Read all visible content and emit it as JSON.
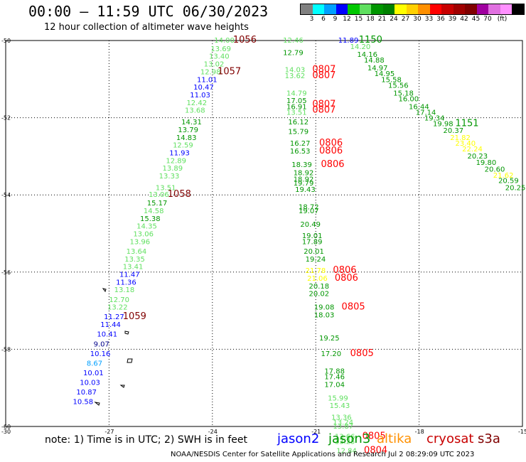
{
  "title": "00:00 – 11:59 UTC 06/30/2023",
  "subtitle": "12 hour collection of altimeter wave heights",
  "legend": {
    "colors": [
      "#808080",
      "#00ffff",
      "#00a0ff",
      "#0000ff",
      "#00c800",
      "#60e060",
      "#009600",
      "#008000",
      "#ffff00",
      "#ffd000",
      "#ff9000",
      "#ff0000",
      "#c80000",
      "#a00000",
      "#800000",
      "#a000a0",
      "#e070e0",
      "#ff90ff",
      "#000000"
    ],
    "labels": [
      "3",
      "6",
      "9",
      "12",
      "15",
      "18",
      "21",
      "24",
      "27",
      "30",
      "33",
      "36",
      "39",
      "42",
      "45",
      "70",
      "(ft)"
    ]
  },
  "axes": {
    "lat_labels": [
      "-50",
      "-52",
      "-54",
      "-56",
      "-58",
      "-60"
    ],
    "lon_labels": [
      "-30",
      "-27",
      "-24",
      "-21",
      "-18",
      "-15"
    ]
  },
  "note": "note: 1) Time is in UTC; 2) SWH is in feet",
  "satellites": [
    {
      "name": "jason2",
      "color": "#0000ff"
    },
    {
      "name": "jason3",
      "color": "#009600"
    },
    {
      "name": "altika",
      "color": "#ff9000"
    },
    {
      "name": "cryosat",
      "color": "#c80000"
    },
    {
      "name": "s3a",
      "color": "#800000"
    }
  ],
  "footer": "NOAA/NESDIS Center for Satellite Applications and Research    Jul  2 08:29:09 UTC 2023",
  "readings": [
    {
      "t": "14.00",
      "lon": -23.95,
      "lat": -49.98,
      "c": "#60e060"
    },
    {
      "t": "1056",
      "lon": -23.4,
      "lat": -49.98,
      "c": "#800000",
      "big": 1
    },
    {
      "t": "13.69",
      "lon": -24.05,
      "lat": -50.2,
      "c": "#60e060"
    },
    {
      "t": "13.40",
      "lon": -24.1,
      "lat": -50.4,
      "c": "#60e060"
    },
    {
      "t": "13.02",
      "lon": -24.25,
      "lat": -50.6,
      "c": "#60e060"
    },
    {
      "t": "12.98",
      "lon": -24.35,
      "lat": -50.8,
      "c": "#60e060"
    },
    {
      "t": "1057",
      "lon": -23.85,
      "lat": -50.8,
      "c": "#800000",
      "big": 1
    },
    {
      "t": "11.01",
      "lon": -24.45,
      "lat": -51.0,
      "c": "#0000ff"
    },
    {
      "t": "10.47",
      "lon": -24.55,
      "lat": -51.2,
      "c": "#0000ff"
    },
    {
      "t": "11.03",
      "lon": -24.65,
      "lat": -51.4,
      "c": "#0000ff"
    },
    {
      "t": "12.42",
      "lon": -24.75,
      "lat": -51.6,
      "c": "#60e060"
    },
    {
      "t": "13.68",
      "lon": -24.8,
      "lat": -51.8,
      "c": "#60e060"
    },
    {
      "t": "14.31",
      "lon": -24.9,
      "lat": -52.1,
      "c": "#009600"
    },
    {
      "t": "13.79",
      "lon": -25.0,
      "lat": -52.3,
      "c": "#009600"
    },
    {
      "t": "14.83",
      "lon": -25.05,
      "lat": -52.5,
      "c": "#009600"
    },
    {
      "t": "12.59",
      "lon": -25.15,
      "lat": -52.7,
      "c": "#60e060"
    },
    {
      "t": "11.93",
      "lon": -25.25,
      "lat": -52.9,
      "c": "#0000ff"
    },
    {
      "t": "12.89",
      "lon": -25.35,
      "lat": -53.1,
      "c": "#60e060"
    },
    {
      "t": "13.89",
      "lon": -25.45,
      "lat": -53.3,
      "c": "#60e060"
    },
    {
      "t": "13.33",
      "lon": -25.55,
      "lat": -53.5,
      "c": "#60e060"
    },
    {
      "t": "13.51",
      "lon": -25.65,
      "lat": -53.8,
      "c": "#60e060"
    },
    {
      "t": "13.06",
      "lon": -25.85,
      "lat": -53.98,
      "c": "#60e060"
    },
    {
      "t": "1058",
      "lon": -25.3,
      "lat": -53.98,
      "c": "#800000",
      "big": 1
    },
    {
      "t": "15.17",
      "lon": -25.9,
      "lat": -54.2,
      "c": "#009600"
    },
    {
      "t": "14.58",
      "lon": -26.0,
      "lat": -54.4,
      "c": "#60e060"
    },
    {
      "t": "15.38",
      "lon": -26.1,
      "lat": -54.6,
      "c": "#009600"
    },
    {
      "t": "14.35",
      "lon": -26.2,
      "lat": -54.8,
      "c": "#60e060"
    },
    {
      "t": "13.06",
      "lon": -26.3,
      "lat": -55.0,
      "c": "#60e060"
    },
    {
      "t": "13.96",
      "lon": -26.4,
      "lat": -55.2,
      "c": "#60e060"
    },
    {
      "t": "13.64",
      "lon": -26.5,
      "lat": -55.45,
      "c": "#60e060"
    },
    {
      "t": "13.35",
      "lon": -26.55,
      "lat": -55.65,
      "c": "#60e060"
    },
    {
      "t": "13.41",
      "lon": -26.6,
      "lat": -55.85,
      "c": "#60e060"
    },
    {
      "t": "11.47",
      "lon": -26.7,
      "lat": -56.05,
      "c": "#0000ff"
    },
    {
      "t": "11.36",
      "lon": -26.8,
      "lat": -56.25,
      "c": "#0000ff"
    },
    {
      "t": "13.18",
      "lon": -26.85,
      "lat": -56.45,
      "c": "#60e060"
    },
    {
      "t": "12.70",
      "lon": -27.0,
      "lat": -56.7,
      "c": "#60e060"
    },
    {
      "t": "13.22",
      "lon": -27.05,
      "lat": -56.9,
      "c": "#60e060"
    },
    {
      "t": "11.27",
      "lon": -27.15,
      "lat": -57.15,
      "c": "#0000ff"
    },
    {
      "t": "1059",
      "lon": -26.6,
      "lat": -57.15,
      "c": "#800000",
      "big": 1
    },
    {
      "t": "11.44",
      "lon": -27.25,
      "lat": -57.35,
      "c": "#0000ff"
    },
    {
      "t": "10.41",
      "lon": -27.35,
      "lat": -57.6,
      "c": "#0000ff"
    },
    {
      "t": "9.07",
      "lon": -27.45,
      "lat": -57.85,
      "c": "#00008b"
    },
    {
      "t": "10.16",
      "lon": -27.55,
      "lat": -58.1,
      "c": "#0000ff"
    },
    {
      "t": "8.67",
      "lon": -27.65,
      "lat": -58.35,
      "c": "#00a0ff"
    },
    {
      "t": "10.01",
      "lon": -27.75,
      "lat": -58.6,
      "c": "#0000ff"
    },
    {
      "t": "10.03",
      "lon": -27.85,
      "lat": -58.85,
      "c": "#0000ff"
    },
    {
      "t": "10.87",
      "lon": -27.95,
      "lat": -59.1,
      "c": "#0000ff"
    },
    {
      "t": "10.58",
      "lon": -28.05,
      "lat": -59.35,
      "c": "#0000ff"
    },
    {
      "t": "12.46",
      "lon": -21.95,
      "lat": -49.98,
      "c": "#60e060"
    },
    {
      "t": "12.79",
      "lon": -21.95,
      "lat": -50.3,
      "c": "#009600"
    },
    {
      "t": "14.03",
      "lon": -21.9,
      "lat": -50.75,
      "c": "#60e060"
    },
    {
      "t": "13.62",
      "lon": -21.9,
      "lat": -50.9,
      "c": "#60e060"
    },
    {
      "t": "0807",
      "lon": -21.1,
      "lat": -50.75,
      "c": "#ff0000",
      "big": 1
    },
    {
      "t": "0807",
      "lon": -21.1,
      "lat": -50.9,
      "c": "#ff0000",
      "big": 1
    },
    {
      "t": "14.79",
      "lon": -21.85,
      "lat": -51.35,
      "c": "#60e060"
    },
    {
      "t": "17.05",
      "lon": -21.85,
      "lat": -51.55,
      "c": "#009600"
    },
    {
      "t": "16.91",
      "lon": -21.85,
      "lat": -51.7,
      "c": "#009600"
    },
    {
      "t": "13.51",
      "lon": -21.85,
      "lat": -51.85,
      "c": "#60e060"
    },
    {
      "t": "0807",
      "lon": -21.1,
      "lat": -51.65,
      "c": "#ff0000",
      "big": 1
    },
    {
      "t": "0807",
      "lon": -21.1,
      "lat": -51.8,
      "c": "#ff0000",
      "big": 1
    },
    {
      "t": "16.12",
      "lon": -21.8,
      "lat": -52.1,
      "c": "#009600"
    },
    {
      "t": "15.79",
      "lon": -21.8,
      "lat": -52.35,
      "c": "#009600"
    },
    {
      "t": "16.27",
      "lon": -21.75,
      "lat": -52.65,
      "c": "#009600"
    },
    {
      "t": "0806",
      "lon": -20.9,
      "lat": -52.65,
      "c": "#ff0000",
      "big": 1
    },
    {
      "t": "16.53",
      "lon": -21.75,
      "lat": -52.85,
      "c": "#009600"
    },
    {
      "t": "0806",
      "lon": -20.9,
      "lat": -52.85,
      "c": "#ff0000",
      "big": 1
    },
    {
      "t": "18.39",
      "lon": -21.7,
      "lat": -53.2,
      "c": "#009600"
    },
    {
      "t": "0806",
      "lon": -20.85,
      "lat": -53.2,
      "c": "#ff0000",
      "big": 1
    },
    {
      "t": "18.92",
      "lon": -21.65,
      "lat": -53.42,
      "c": "#009600"
    },
    {
      "t": "18.92",
      "lon": -21.65,
      "lat": -53.58,
      "c": "#009600"
    },
    {
      "t": "19.79",
      "lon": -21.65,
      "lat": -53.68,
      "c": "#009600"
    },
    {
      "t": "19.43",
      "lon": -21.6,
      "lat": -53.85,
      "c": "#009600"
    },
    {
      "t": "18.72",
      "lon": -21.5,
      "lat": -54.3,
      "c": "#009600"
    },
    {
      "t": "19.07",
      "lon": -21.5,
      "lat": -54.4,
      "c": "#009600"
    },
    {
      "t": "20.49",
      "lon": -21.45,
      "lat": -54.75,
      "c": "#009600"
    },
    {
      "t": "19.01",
      "lon": -21.4,
      "lat": -55.05,
      "c": "#009600"
    },
    {
      "t": "17.89",
      "lon": -21.4,
      "lat": -55.2,
      "c": "#009600"
    },
    {
      "t": "20.01",
      "lon": -21.35,
      "lat": -55.45,
      "c": "#009600"
    },
    {
      "t": "19.24",
      "lon": -21.3,
      "lat": -55.65,
      "c": "#009600"
    },
    {
      "t": "21.78",
      "lon": -21.3,
      "lat": -55.95,
      "c": "#ffff00"
    },
    {
      "t": "0806",
      "lon": -20.5,
      "lat": -55.95,
      "c": "#ff0000",
      "big": 1
    },
    {
      "t": "21.06",
      "lon": -21.25,
      "lat": -56.15,
      "c": "#ffff00"
    },
    {
      "t": "0806",
      "lon": -20.45,
      "lat": -56.15,
      "c": "#ff0000",
      "big": 1
    },
    {
      "t": "20.18",
      "lon": -21.2,
      "lat": -56.35,
      "c": "#009600"
    },
    {
      "t": "20.02",
      "lon": -21.2,
      "lat": -56.55,
      "c": "#009600"
    },
    {
      "t": "19.08",
      "lon": -21.05,
      "lat": -56.9,
      "c": "#009600"
    },
    {
      "t": "0805",
      "lon": -20.25,
      "lat": -56.9,
      "c": "#ff0000",
      "big": 1
    },
    {
      "t": "18.03",
      "lon": -21.05,
      "lat": -57.1,
      "c": "#009600"
    },
    {
      "t": "19.25",
      "lon": -20.9,
      "lat": -57.7,
      "c": "#009600"
    },
    {
      "t": "17.20",
      "lon": -20.85,
      "lat": -58.1,
      "c": "#009600"
    },
    {
      "t": "0805",
      "lon": -20.0,
      "lat": -58.1,
      "c": "#ff0000",
      "big": 1
    },
    {
      "t": "17.88",
      "lon": -20.75,
      "lat": -58.55,
      "c": "#009600"
    },
    {
      "t": "17.46",
      "lon": -20.75,
      "lat": -58.7,
      "c": "#009600"
    },
    {
      "t": "17.04",
      "lon": -20.75,
      "lat": -58.9,
      "c": "#009600"
    },
    {
      "t": "15.99",
      "lon": -20.65,
      "lat": -59.25,
      "c": "#60e060"
    },
    {
      "t": "15.43",
      "lon": -20.6,
      "lat": -59.45,
      "c": "#60e060"
    },
    {
      "t": "13.36",
      "lon": -20.55,
      "lat": -59.75,
      "c": "#60e060"
    },
    {
      "t": "13.24",
      "lon": -20.5,
      "lat": -59.88,
      "c": "#60e060"
    },
    {
      "t": "13.87",
      "lon": -20.5,
      "lat": -59.98,
      "c": "#60e060"
    },
    {
      "t": "13.66",
      "lon": -20.45,
      "lat": -60.25,
      "c": "#60e060"
    },
    {
      "t": "13.25",
      "lon": -20.45,
      "lat": -60.38,
      "c": "#60e060"
    },
    {
      "t": "0805",
      "lon": -19.65,
      "lat": -60.25,
      "c": "#ff0000",
      "big": 1
    },
    {
      "t": "12.84",
      "lon": -20.4,
      "lat": -60.62,
      "c": "#60e060"
    },
    {
      "t": "0804",
      "lon": -19.6,
      "lat": -60.62,
      "c": "#ff0000",
      "big": 1
    },
    {
      "t": "11.89",
      "lon": -20.35,
      "lat": -49.98,
      "c": "#0000ff"
    },
    {
      "t": "1150",
      "lon": -19.75,
      "lat": -49.98,
      "c": "#009600",
      "big": 1
    },
    {
      "t": "14.20",
      "lon": -20.0,
      "lat": -50.15,
      "c": "#60e060"
    },
    {
      "t": "14.16",
      "lon": -19.8,
      "lat": -50.35,
      "c": "#009600"
    },
    {
      "t": "14.88",
      "lon": -19.6,
      "lat": -50.5,
      "c": "#009600"
    },
    {
      "t": "14.97",
      "lon": -19.5,
      "lat": -50.7,
      "c": "#009600"
    },
    {
      "t": "14.95",
      "lon": -19.3,
      "lat": -50.85,
      "c": "#009600"
    },
    {
      "t": "15.58",
      "lon": -19.1,
      "lat": -51.0,
      "c": "#009600"
    },
    {
      "t": "15.56",
      "lon": -18.9,
      "lat": -51.15,
      "c": "#009600"
    },
    {
      "t": "15.18",
      "lon": -18.75,
      "lat": -51.35,
      "c": "#009600"
    },
    {
      "t": "16.00",
      "lon": -18.6,
      "lat": -51.5,
      "c": "#009600"
    },
    {
      "t": "16.44",
      "lon": -18.3,
      "lat": -51.7,
      "c": "#009600"
    },
    {
      "t": "17.14",
      "lon": -18.1,
      "lat": -51.85,
      "c": "#009600"
    },
    {
      "t": "19.34",
      "lon": -17.85,
      "lat": -52.0,
      "c": "#009600"
    },
    {
      "t": "19.98",
      "lon": -17.6,
      "lat": -52.15,
      "c": "#009600"
    },
    {
      "t": "1151",
      "lon": -16.95,
      "lat": -52.15,
      "c": "#009600",
      "big": 1
    },
    {
      "t": "20.37",
      "lon": -17.3,
      "lat": -52.32,
      "c": "#009600"
    },
    {
      "t": "21.82",
      "lon": -17.1,
      "lat": -52.5,
      "c": "#ffff00"
    },
    {
      "t": "23.40",
      "lon": -16.95,
      "lat": -52.65,
      "c": "#ffff00"
    },
    {
      "t": "22.24",
      "lon": -16.75,
      "lat": -52.8,
      "c": "#ffff00"
    },
    {
      "t": "20.23",
      "lon": -16.6,
      "lat": -52.98,
      "c": "#009600"
    },
    {
      "t": "19.80",
      "lon": -16.35,
      "lat": -53.15,
      "c": "#009600"
    },
    {
      "t": "20.60",
      "lon": -16.1,
      "lat": -53.32,
      "c": "#009600"
    },
    {
      "t": "21.62",
      "lon": -15.85,
      "lat": -53.48,
      "c": "#ffff00"
    },
    {
      "t": "20.59",
      "lon": -15.7,
      "lat": -53.62,
      "c": "#009600"
    },
    {
      "t": "20.25",
      "lon": -15.5,
      "lat": -53.8,
      "c": "#009600"
    }
  ]
}
